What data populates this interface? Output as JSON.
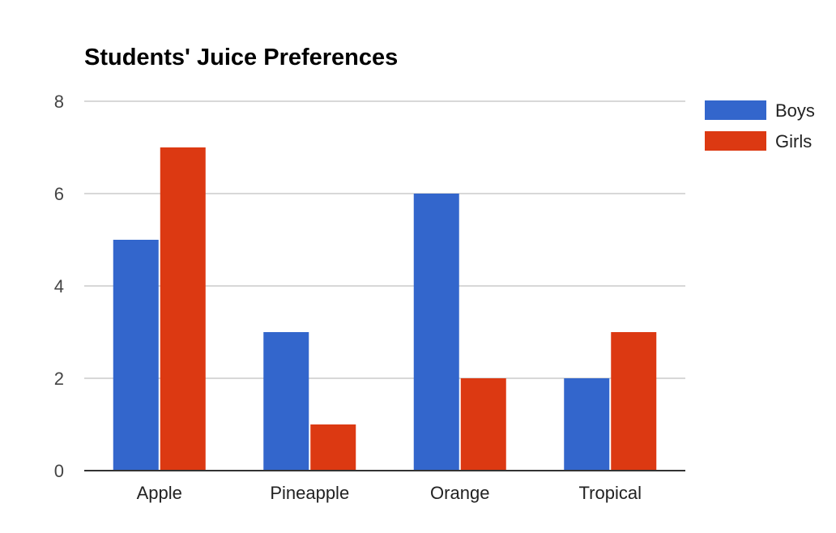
{
  "chart_data": {
    "type": "bar",
    "title": "Students' Juice Preferences",
    "xlabel": "",
    "ylabel": "",
    "categories": [
      "Apple",
      "Pineapple",
      "Orange",
      "Tropical"
    ],
    "series": [
      {
        "name": "Boys",
        "values": [
          5,
          3,
          6,
          2
        ],
        "color": "#3366cc"
      },
      {
        "name": "Girls",
        "values": [
          7,
          1,
          2,
          3
        ],
        "color": "#dc3912"
      }
    ],
    "ylim": [
      0,
      8
    ],
    "yticks": [
      "0",
      "2",
      "4",
      "6",
      "8"
    ],
    "grid": true,
    "legend_position": "right"
  }
}
